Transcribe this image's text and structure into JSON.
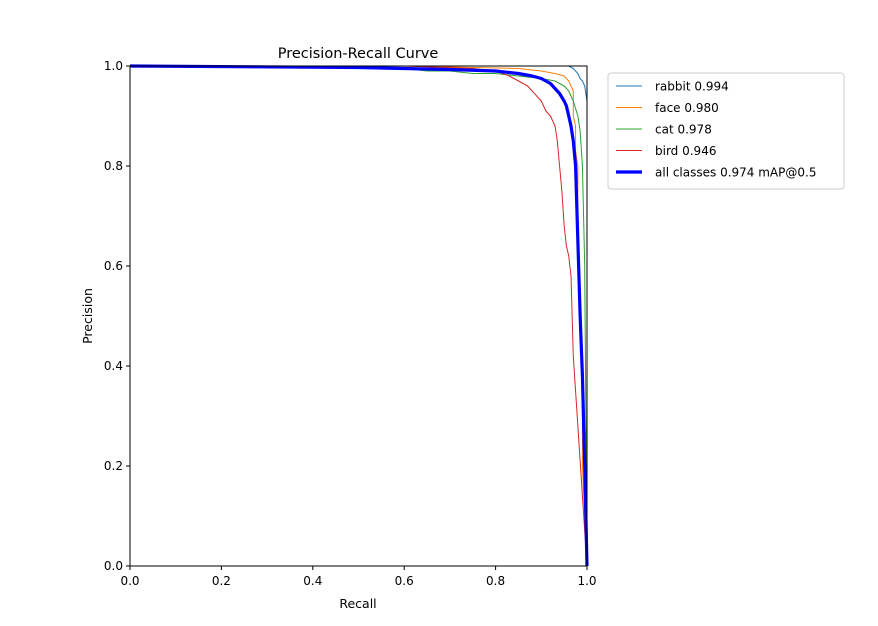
{
  "chart_data": {
    "type": "line",
    "title": "Precision-Recall Curve",
    "xlabel": "Recall",
    "ylabel": "Precision",
    "xlim": [
      0.0,
      1.0
    ],
    "ylim": [
      0.0,
      1.0
    ],
    "xticks": [
      "0.0",
      "0.2",
      "0.4",
      "0.6",
      "0.8",
      "1.0"
    ],
    "yticks": [
      "0.0",
      "0.2",
      "0.4",
      "0.6",
      "0.8",
      "1.0"
    ],
    "grid": false,
    "legend_position": "outside-top-right",
    "series": [
      {
        "name": "rabbit 0.994",
        "color": "#1f77b4",
        "x": [
          0.0,
          0.5,
          0.85,
          0.9,
          0.93,
          0.95,
          0.96,
          0.97,
          0.975,
          0.98,
          0.985,
          0.99,
          0.995,
          1.0,
          1.0
        ],
        "y": [
          1.0,
          1.0,
          1.0,
          1.0,
          1.0,
          1.0,
          1.0,
          0.995,
          0.99,
          0.985,
          0.975,
          0.97,
          0.96,
          0.93,
          0.0
        ]
      },
      {
        "name": "face 0.980",
        "color": "#ff7f0e",
        "x": [
          0.0,
          0.6,
          0.85,
          0.9,
          0.93,
          0.95,
          0.96,
          0.97,
          0.97,
          0.975,
          0.975,
          0.98,
          0.98,
          0.99,
          0.99,
          1.0
        ],
        "y": [
          1.0,
          1.0,
          0.995,
          0.99,
          0.985,
          0.98,
          0.97,
          0.95,
          0.9,
          0.88,
          0.83,
          0.8,
          0.6,
          0.4,
          0.2,
          0.0
        ]
      },
      {
        "name": "cat 0.978",
        "color": "#2ca02c",
        "x": [
          0.0,
          0.45,
          0.46,
          0.6,
          0.65,
          0.7,
          0.75,
          0.8,
          0.85,
          0.9,
          0.93,
          0.95,
          0.96,
          0.97,
          0.98,
          0.985,
          0.99,
          0.995,
          1.0
        ],
        "y": [
          1.0,
          1.0,
          0.995,
          0.995,
          0.99,
          0.99,
          0.985,
          0.985,
          0.98,
          0.975,
          0.97,
          0.96,
          0.95,
          0.93,
          0.9,
          0.87,
          0.8,
          0.6,
          0.0
        ]
      },
      {
        "name": "bird 0.946",
        "color": "#d62728",
        "x": [
          0.0,
          0.6,
          0.75,
          0.8,
          0.83,
          0.85,
          0.87,
          0.88,
          0.89,
          0.9,
          0.91,
          0.92,
          0.93,
          0.935,
          0.94,
          0.945,
          0.95,
          0.955,
          0.96,
          0.965,
          0.97,
          1.0
        ],
        "y": [
          1.0,
          1.0,
          0.995,
          0.99,
          0.98,
          0.97,
          0.96,
          0.95,
          0.94,
          0.93,
          0.91,
          0.9,
          0.88,
          0.85,
          0.8,
          0.75,
          0.68,
          0.64,
          0.62,
          0.58,
          0.42,
          0.0
        ]
      },
      {
        "name": "all classes 0.974 mAP@0.5",
        "color": "#0000ff",
        "width": 3.2,
        "x": [
          0.0,
          0.5,
          0.7,
          0.8,
          0.85,
          0.88,
          0.9,
          0.92,
          0.93,
          0.94,
          0.95,
          0.955,
          0.96,
          0.965,
          0.97,
          0.975,
          0.98,
          0.985,
          0.99,
          0.995,
          1.0
        ],
        "y": [
          1.0,
          0.997,
          0.993,
          0.99,
          0.985,
          0.98,
          0.975,
          0.965,
          0.955,
          0.945,
          0.93,
          0.92,
          0.9,
          0.88,
          0.85,
          0.8,
          0.65,
          0.5,
          0.38,
          0.2,
          0.0
        ]
      }
    ]
  }
}
